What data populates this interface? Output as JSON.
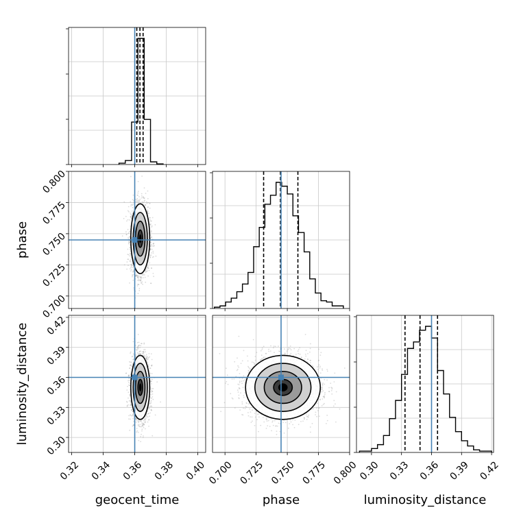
{
  "chart_data": {
    "type": "corner",
    "parameters": [
      "geocent_time",
      "phase",
      "luminosity_distance"
    ],
    "truths": {
      "geocent_time": 0.36,
      "phase": 0.745,
      "luminosity_distance": 0.36
    },
    "colors": {
      "truth": "#4682b4",
      "hist": "#000000",
      "grid": "#c8c8c8",
      "scatter": "#999999"
    },
    "grid": true,
    "axes": {
      "geocent_time": {
        "range": [
          0.318,
          0.405
        ],
        "ticks": [
          "0.32",
          "0.34",
          "0.36",
          "0.38",
          "0.40"
        ]
      },
      "phase": {
        "range": [
          0.69,
          0.8
        ],
        "ticks": [
          "0.700",
          "0.725",
          "0.750",
          "0.775",
          "0.800"
        ]
      },
      "luminosity_distance": {
        "range": [
          0.285,
          0.422
        ],
        "ticks": [
          "0.30",
          "0.33",
          "0.36",
          "0.39",
          "0.42"
        ]
      }
    },
    "histograms": {
      "geocent_time": {
        "bin_edges": [
          0.35,
          0.354,
          0.358,
          0.362,
          0.366,
          0.37,
          0.374,
          0.378
        ],
        "counts": [
          0.01,
          0.03,
          0.32,
          0.95,
          0.34,
          0.02,
          0.005
        ],
        "quantiles": [
          0.3613,
          0.3633,
          0.3653
        ]
      },
      "phase": {
        "bin_edges": [
          0.6915,
          0.696,
          0.7005,
          0.705,
          0.7095,
          0.714,
          0.7185,
          0.723,
          0.7275,
          0.732,
          0.7365,
          0.741,
          0.7455,
          0.75,
          0.7545,
          0.759,
          0.7635,
          0.768,
          0.7725,
          0.777,
          0.7815,
          0.786,
          0.7905,
          0.795
        ],
        "counts": [
          0.01,
          0.02,
          0.05,
          0.08,
          0.13,
          0.19,
          0.28,
          0.48,
          0.63,
          0.81,
          0.88,
          0.98,
          0.95,
          0.89,
          0.72,
          0.59,
          0.44,
          0.23,
          0.12,
          0.06,
          0.05,
          0.02,
          0.02
        ],
        "quantiles": [
          0.731,
          0.7445,
          0.7585
        ]
      },
      "luminosity_distance": {
        "bin_edges": [
          0.288,
          0.294,
          0.3,
          0.306,
          0.312,
          0.318,
          0.324,
          0.33,
          0.336,
          0.342,
          0.348,
          0.354,
          0.36,
          0.366,
          0.372,
          0.378,
          0.384,
          0.39,
          0.396,
          0.402,
          0.408,
          0.414,
          0.42
        ],
        "counts": [
          0.01,
          0.01,
          0.03,
          0.06,
          0.13,
          0.26,
          0.4,
          0.6,
          0.8,
          0.85,
          0.94,
          0.97,
          0.88,
          0.63,
          0.45,
          0.27,
          0.16,
          0.09,
          0.05,
          0.02,
          0.01,
          0.01
        ],
        "quantiles": [
          0.3335,
          0.3485,
          0.366
        ]
      }
    },
    "pairs": [
      {
        "x": "geocent_time",
        "y": "phase",
        "mean": [
          0.3635,
          0.746
        ],
        "std": [
          0.003,
          0.014
        ]
      },
      {
        "x": "geocent_time",
        "y": "luminosity_distance",
        "mean": [
          0.3635,
          0.35
        ],
        "std": [
          0.003,
          0.016
        ]
      },
      {
        "x": "phase",
        "y": "luminosity_distance",
        "mean": [
          0.7465,
          0.35
        ],
        "std": [
          0.015,
          0.016
        ]
      }
    ]
  }
}
